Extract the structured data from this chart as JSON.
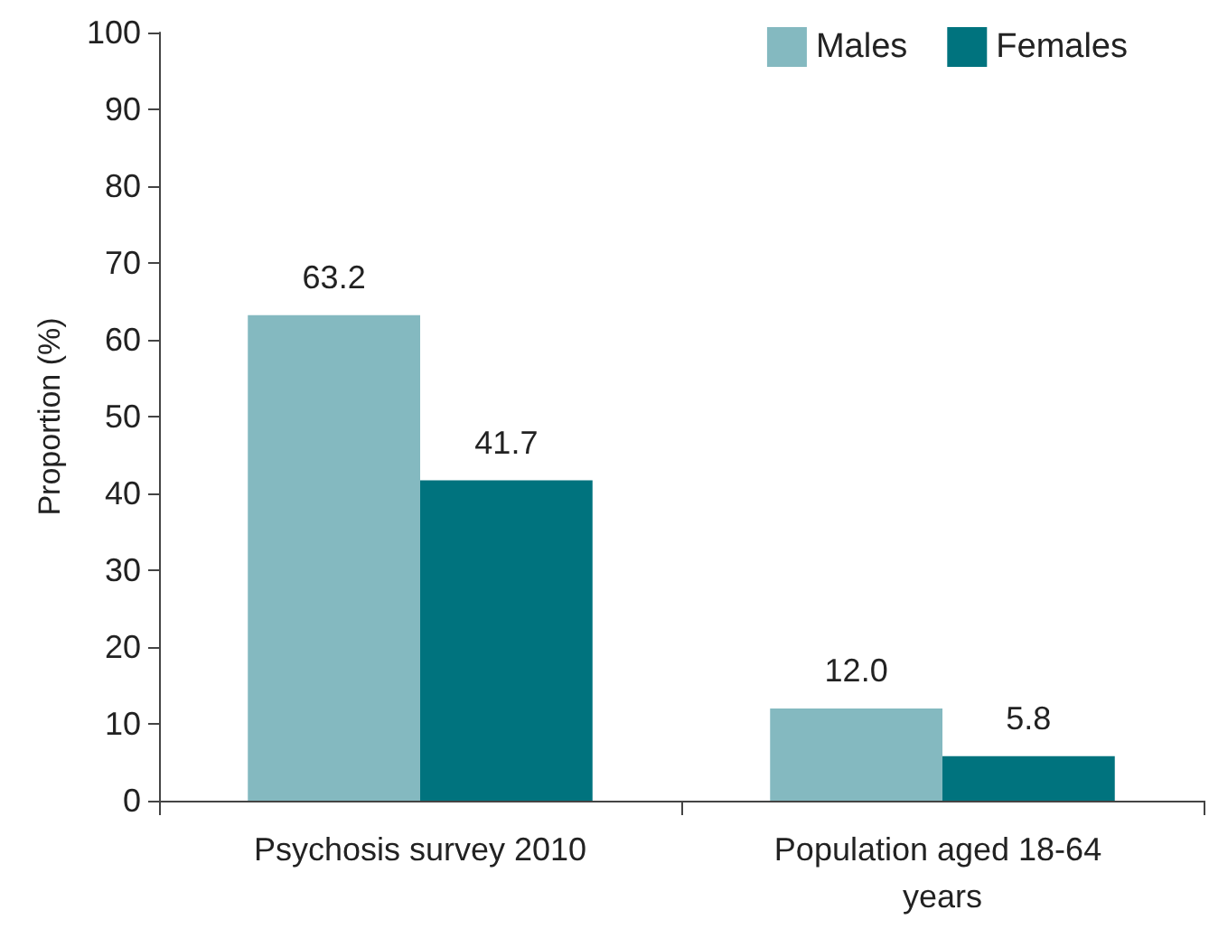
{
  "chart_data": {
    "type": "bar",
    "ylabel": "Proportion (%)",
    "categories": [
      "Psychosis survey 2010",
      "Population aged 18-64 years"
    ],
    "series": [
      {
        "name": "Males",
        "color": "#84b9c0",
        "values": [
          63.2,
          12.0
        ],
        "value_labels": [
          "63.2",
          "12.0"
        ]
      },
      {
        "name": "Females",
        "color": "#00737e",
        "values": [
          41.7,
          5.8
        ],
        "value_labels": [
          "41.7",
          "5.8"
        ]
      }
    ],
    "ylim": [
      0,
      100
    ],
    "yticks": [
      0,
      10,
      20,
      30,
      40,
      50,
      60,
      70,
      80,
      90,
      100
    ],
    "grid": false,
    "legend": "top right"
  }
}
